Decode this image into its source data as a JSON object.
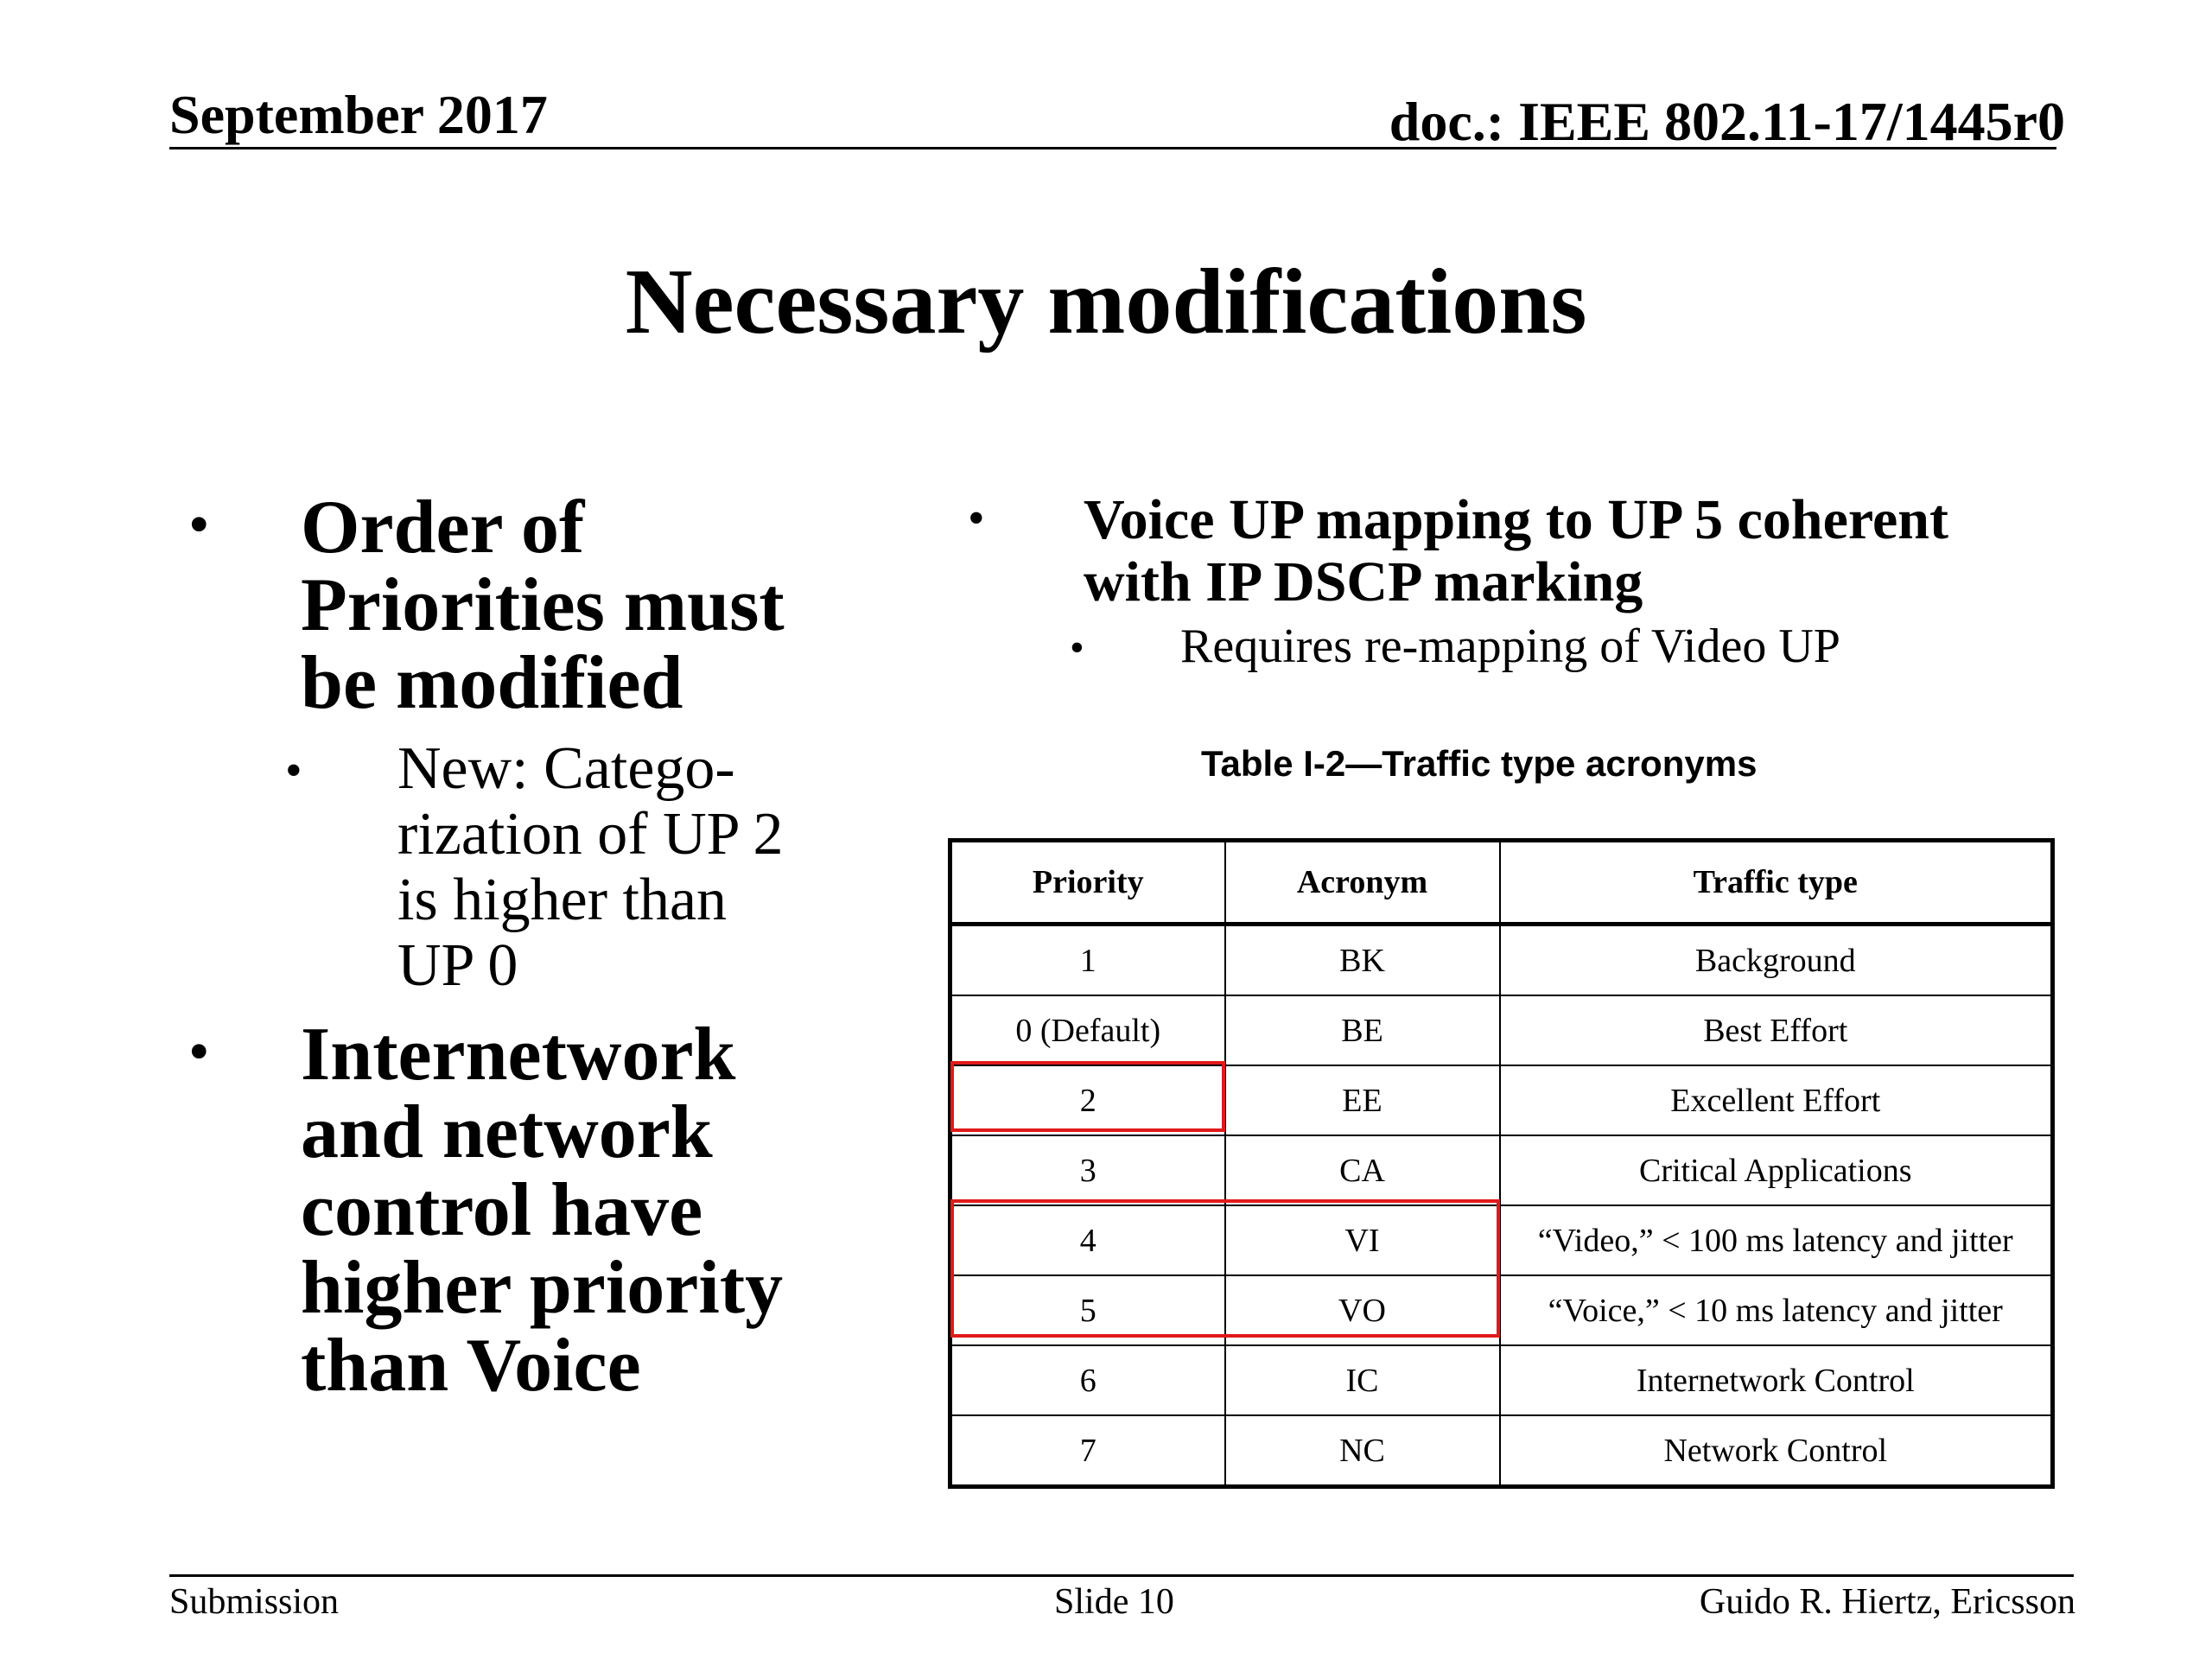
{
  "header": {
    "date": "September 2017",
    "doc": "doc.: IEEE 802.11-17/1445r0"
  },
  "title": "Necessary modifications",
  "left_column": {
    "bullet1": "Order of Priorities must be modified",
    "sub1": "New: Catego-rization of UP 2 is higher than UP 0",
    "bullet2": "Internetwork and network control have higher priority than Voice"
  },
  "right_column": {
    "bullet1": "Voice UP mapping to UP 5 coherent with IP DSCP marking",
    "sub1": "Requires re-mapping of Video UP"
  },
  "table": {
    "caption": "Table I-2—Traffic type acronyms",
    "headers": [
      "Priority",
      "Acronym",
      "Traffic type"
    ],
    "rows": [
      [
        "1",
        "BK",
        "Background"
      ],
      [
        "0 (Default)",
        "BE",
        "Best Effort"
      ],
      [
        "2",
        "EE",
        "Excellent Effort"
      ],
      [
        "3",
        "CA",
        "Critical Applications"
      ],
      [
        "4",
        "VI",
        "“Video,” < 100 ms latency and jitter"
      ],
      [
        "5",
        "VO",
        "“Voice,” < 10 ms latency and jitter"
      ],
      [
        "6",
        "IC",
        "Internetwork Control"
      ],
      [
        "7",
        "NC",
        "Network Control"
      ]
    ],
    "highlight_color": "#e11a1a"
  },
  "footer": {
    "left": "Submission",
    "center": "Slide 10",
    "right": "Guido R. Hiertz, Ericsson"
  },
  "bullet_glyph": "•"
}
